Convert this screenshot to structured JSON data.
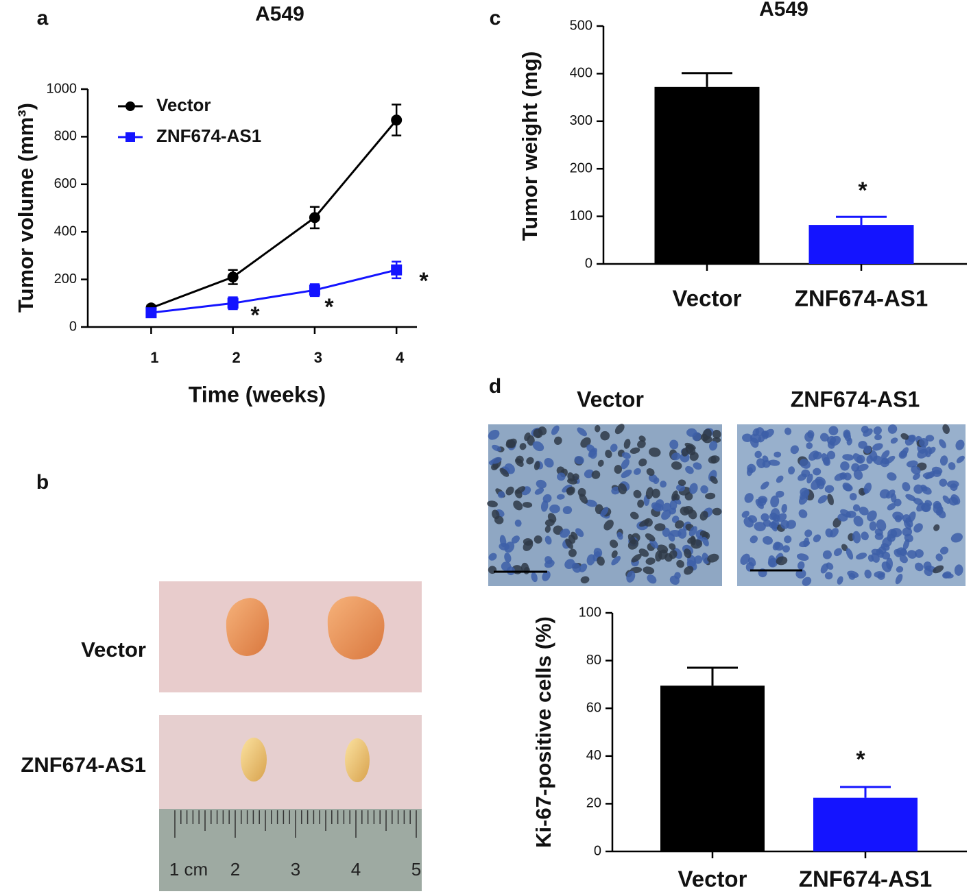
{
  "chart_data": [
    {
      "type": "line",
      "panel": "a",
      "title": "A549",
      "x_label": "Time (weeks)",
      "y_label": "Tumor volume (mm³)",
      "x": [
        1,
        2,
        3,
        4
      ],
      "xlim": [
        0.225,
        4.25
      ],
      "xticks": [
        1,
        2,
        3,
        4
      ],
      "ylim": [
        0,
        1000
      ],
      "yticks": [
        0,
        200,
        400,
        600,
        800,
        1000
      ],
      "series": [
        {
          "name": "Vector",
          "color": "#000000",
          "marker": "circle",
          "values": [
            80,
            210,
            460,
            870
          ],
          "errors": [
            10,
            30,
            45,
            65
          ]
        },
        {
          "name": "ZNF674-AS1",
          "color": "#1414ff",
          "marker": "square",
          "values": [
            60,
            100,
            155,
            240
          ],
          "errors": [
            15,
            25,
            25,
            35
          ]
        }
      ],
      "annotations": [
        "*",
        "*",
        "*"
      ]
    },
    {
      "type": "bar",
      "panel": "c",
      "title": "A549",
      "y_label": "Tumor weight (mg)",
      "categories": [
        "Vector",
        "ZNF674-AS1"
      ],
      "values": [
        372,
        82
      ],
      "errors": [
        29,
        17
      ],
      "colors": [
        "#000000",
        "#1414ff"
      ],
      "ylim": [
        0,
        500
      ],
      "yticks": [
        0,
        100,
        200,
        300,
        400,
        500
      ],
      "annotations": [
        "*"
      ]
    },
    {
      "type": "bar",
      "panel": "d",
      "y_label": "Ki-67-positive cells (%)",
      "categories": [
        "Vector",
        "ZNF674-AS1"
      ],
      "values": [
        69.5,
        22.5
      ],
      "errors": [
        7.5,
        4.5
      ],
      "colors": [
        "#000000",
        "#1414ff"
      ],
      "ylim": [
        0,
        100
      ],
      "yticks": [
        0,
        20,
        40,
        60,
        80,
        100
      ],
      "annotations": [
        "*"
      ]
    }
  ],
  "photos": {
    "panel": "b",
    "rows": [
      "Vector",
      "ZNF674-AS1"
    ],
    "ruler": [
      "1 cm",
      "2",
      "3",
      "4",
      "5"
    ],
    "micrograph_titles": [
      "Vector",
      "ZNF674-AS1"
    ]
  }
}
